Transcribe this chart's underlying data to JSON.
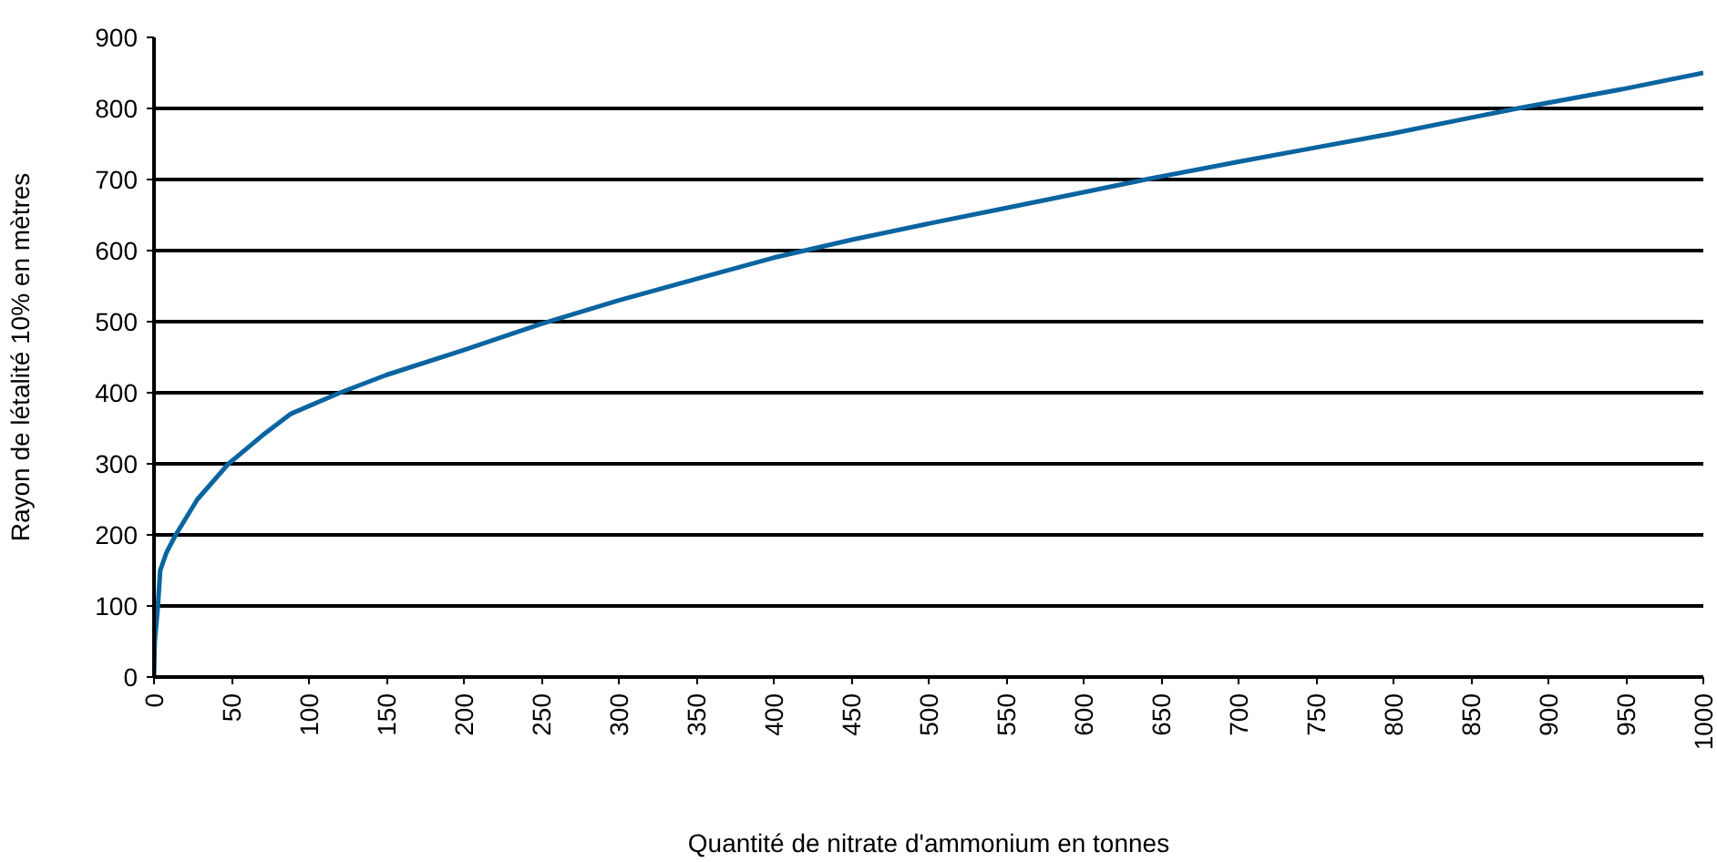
{
  "chart_data": {
    "type": "line",
    "xlabel": "Quantité de nitrate d'ammonium en tonnes",
    "ylabel": "Rayon de létalité 10% en mètres",
    "x": [
      0,
      0.5,
      2.5,
      4,
      8,
      14,
      28,
      48,
      70,
      88,
      120,
      150,
      200,
      250,
      300,
      350,
      400,
      420,
      450,
      500,
      550,
      600,
      640,
      700,
      750,
      800,
      850,
      880,
      900,
      950,
      1000
    ],
    "series": [
      {
        "color": "#0a64a0",
        "values": [
          0,
          50,
          100,
          150,
          175,
          200,
          250,
          300,
          340,
          370,
          400,
          425,
          460,
          497,
          530,
          560,
          590,
          600,
          615,
          638,
          660,
          682,
          700,
          725,
          745,
          765,
          787,
          800,
          808,
          828,
          850
        ]
      }
    ],
    "xlim": [
      0,
      1000
    ],
    "ylim": [
      0,
      900
    ],
    "xticks": [
      0,
      50,
      100,
      150,
      200,
      250,
      300,
      350,
      400,
      450,
      500,
      550,
      600,
      650,
      700,
      750,
      800,
      850,
      900,
      950,
      1000
    ],
    "yticks": [
      0,
      100,
      200,
      300,
      400,
      500,
      600,
      700,
      800,
      900
    ],
    "grid": "y"
  }
}
